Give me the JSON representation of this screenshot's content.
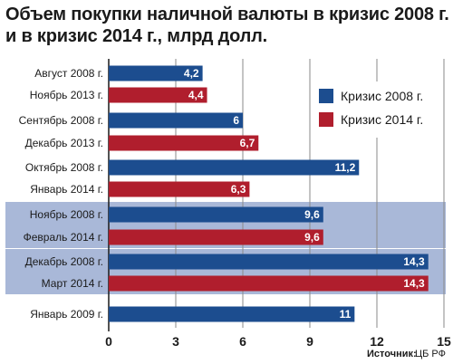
{
  "chart_data": {
    "type": "bar",
    "orientation": "horizontal",
    "title": "Объем покупки наличной валюты в кризис 2008 г. и в кризис 2014 г., млрд долл.",
    "source_label": "Источник:",
    "source_value": "ЦБ РФ",
    "xlim": [
      0,
      15
    ],
    "xticks": [
      "0",
      "3",
      "6",
      "9",
      "12",
      "15"
    ],
    "grid": true,
    "legend_position": "top-right",
    "series": [
      {
        "name": "Кризис 2008 г.",
        "color": "#1c4d8f"
      },
      {
        "name": "Кризис 2014 г.",
        "color": "#b01e2d"
      }
    ],
    "bars": [
      {
        "category": "Август 2008 г.",
        "value": 4.2,
        "label": "4,2",
        "series": 0
      },
      {
        "category": "Ноябрь 2013 г.",
        "value": 4.4,
        "label": "4,4",
        "series": 1
      },
      {
        "category": "Сентябрь 2008 г.",
        "value": 6,
        "label": "6",
        "series": 0
      },
      {
        "category": "Декабрь 2013 г.",
        "value": 6.7,
        "label": "6,7",
        "series": 1
      },
      {
        "category": "Октябрь 2008 г.",
        "value": 11.2,
        "label": "11,2",
        "series": 0
      },
      {
        "category": "Январь 2014 г.",
        "value": 6.3,
        "label": "6,3",
        "series": 1
      },
      {
        "category": "Ноябрь 2008 г.",
        "value": 9.6,
        "label": "9,6",
        "series": 0
      },
      {
        "category": "Февраль 2014 г.",
        "value": 9.6,
        "label": "9,6",
        "series": 1
      },
      {
        "category": "Декабрь 2008 г.",
        "value": 14.3,
        "label": "14,3",
        "series": 0
      },
      {
        "category": "Март 2014 г.",
        "value": 14.3,
        "label": "14,3",
        "series": 1
      },
      {
        "category": "Январь 2009 г.",
        "value": 11,
        "label": "11",
        "series": 0
      }
    ],
    "highlight_groups": [
      [
        6,
        7
      ],
      [
        8,
        9
      ]
    ]
  }
}
